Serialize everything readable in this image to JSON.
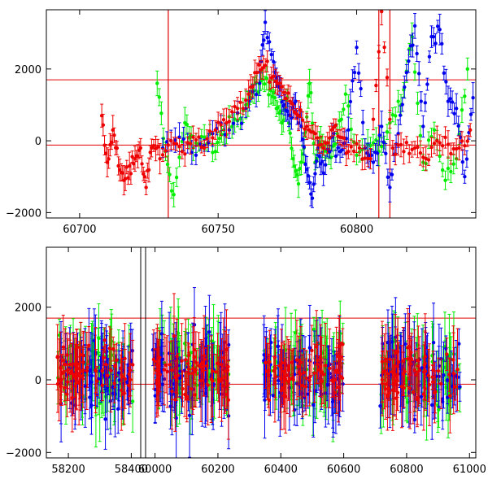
{
  "chart_data": [
    {
      "type": "scatter",
      "title": "",
      "xlabel": "",
      "ylabel": "",
      "xlim": [
        60688,
        60843
      ],
      "ylim": [
        -2150,
        3650
      ],
      "x_ticks": [
        "60700",
        "60750",
        "60800"
      ],
      "y_ticks": [
        "2000",
        "0",
        "−2000"
      ],
      "x_tick_values": [
        60700,
        60750,
        60800
      ],
      "y_tick_values": [
        2000,
        0,
        -2000
      ],
      "hlines": [
        1700,
        -120
      ],
      "vlines": [
        60732,
        60808,
        60812
      ],
      "series": [
        {
          "color": "#00ee00",
          "x": [
            60728,
            60731,
            60734,
            60738,
            60741,
            60745,
            60749,
            60752,
            60756,
            60760,
            60763,
            60766,
            60769,
            60771,
            60773,
            60775,
            60777,
            60779,
            60781,
            60783,
            60785,
            60787,
            60790,
            60793,
            60796,
            60800,
            60804,
            60808,
            60812,
            60816,
            60820,
            60824,
            60828,
            60832,
            60836,
            60840
          ],
          "y": [
            1600,
            -300,
            -1500,
            500,
            -200,
            100,
            -300,
            300,
            600,
            1000,
            1400,
            1700,
            1400,
            900,
            500,
            1200,
            -500,
            -1200,
            -200,
            1600,
            -600,
            100,
            -300,
            200,
            1300,
            -400,
            -100,
            -300,
            500,
            1000,
            2900,
            -600,
            300,
            -1100,
            -500,
            2000
          ]
        },
        {
          "color": "#0000ee",
          "x": [
            60730,
            60736,
            60742,
            60748,
            60754,
            60760,
            60765,
            60767,
            60770,
            60772,
            60774,
            60776,
            60778,
            60780,
            60782,
            60784,
            60786,
            60788,
            60791,
            60794,
            60797,
            60800,
            60803,
            60806,
            60809,
            60812,
            60815,
            60818,
            60821,
            60824,
            60827,
            60830,
            60833,
            60836,
            60839,
            60842
          ],
          "y": [
            -200,
            100,
            -400,
            200,
            300,
            900,
            1600,
            3300,
            2200,
            1500,
            1000,
            700,
            1100,
            400,
            -800,
            -1600,
            -200,
            -900,
            100,
            -300,
            300,
            2600,
            -200,
            -600,
            400,
            -1300,
            200,
            1900,
            3200,
            400,
            2900,
            3100,
            1100,
            900,
            -1000,
            1200
          ]
        },
        {
          "color": "#ee0000",
          "x": [
            60708,
            60710,
            60712,
            60714,
            60716,
            60718,
            60720,
            60722,
            60724,
            60726,
            60729,
            60733,
            60737,
            60741,
            60745,
            60749,
            60753,
            60757,
            60761,
            60764,
            60767,
            60770,
            60773,
            60776,
            60779,
            60782,
            60785,
            60788,
            60791,
            60794,
            60797,
            60801,
            60805,
            60809,
            60813,
            60817,
            60821,
            60825,
            60829,
            60833,
            60837,
            60841
          ],
          "y": [
            700,
            -600,
            300,
            -700,
            -1100,
            -700,
            -500,
            -200,
            -1300,
            -200,
            -500,
            0,
            -300,
            100,
            -200,
            300,
            500,
            900,
            1300,
            1900,
            2100,
            1800,
            1500,
            1100,
            700,
            400,
            200,
            -200,
            300,
            100,
            -300,
            -200,
            -500,
            3600,
            -200,
            -300,
            -200,
            -500,
            0,
            -100,
            -200,
            300
          ]
        }
      ]
    },
    {
      "type": "scatter",
      "title": "",
      "xlabel": "",
      "ylabel": "",
      "xlim": [
        58130,
        61020
      ],
      "ylim": [
        -2150,
        3650
      ],
      "x_ticks": [
        "58200",
        "58400",
        "60000",
        "60200",
        "60400",
        "60600",
        "60800",
        "61000"
      ],
      "y_ticks": [
        "2000",
        "0",
        "−2000"
      ],
      "x_tick_values": [
        58200,
        58400,
        60000,
        60200,
        60400,
        60600,
        60800,
        61000
      ],
      "y_tick_values": [
        2000,
        0,
        -2000
      ],
      "axis_breaks": [
        [
          58430,
          59970
        ]
      ],
      "hlines": [
        1700,
        -120
      ],
      "segments": [
        [
          58165,
          58405
        ],
        [
          59990,
          60235
        ],
        [
          60345,
          60600
        ],
        [
          60715,
          60970
        ]
      ],
      "series": [
        {
          "color": "#00ee00",
          "spread": 1400
        },
        {
          "color": "#0000ee",
          "spread": 1600
        },
        {
          "color": "#ee0000",
          "spread": 1100
        }
      ]
    }
  ]
}
